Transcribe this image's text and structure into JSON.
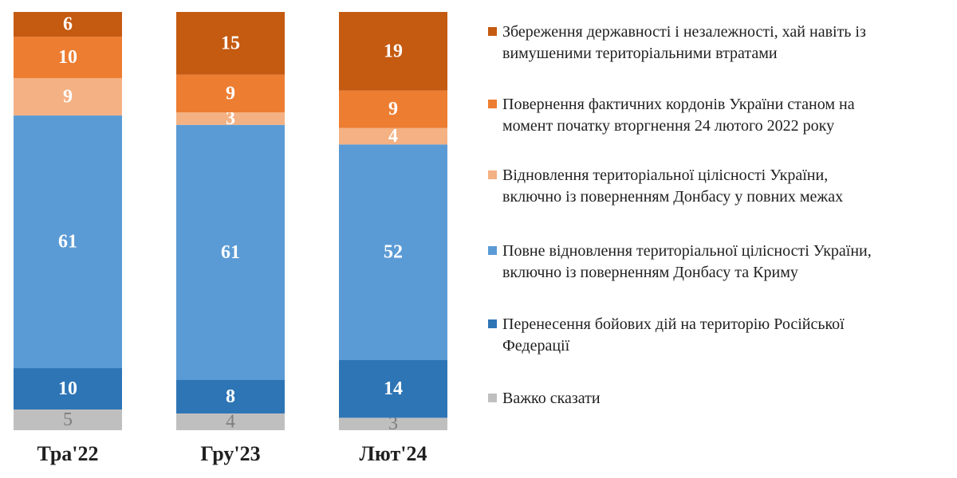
{
  "chart_data": {
    "type": "bar",
    "stacked": true,
    "normalized": true,
    "categories": [
      "Тра'22",
      "Гру'23",
      "Лют'24"
    ],
    "series": [
      {
        "name": "Важко сказати",
        "values": [
          5,
          4,
          3
        ],
        "color": "#bfbfbf",
        "label_color": "#7f7f7f"
      },
      {
        "name": "Перенесення бойових дій на територію Російської Федерації",
        "values": [
          10,
          8,
          14
        ],
        "color": "#2e75b6",
        "label_color": "#ffffff"
      },
      {
        "name": "Повне відновлення територіальної цілісності України, включно із поверненням Донбасу та Криму",
        "values": [
          61,
          61,
          52
        ],
        "color": "#5b9bd5",
        "label_color": "#ffffff"
      },
      {
        "name": "Відновлення територіальної цілісності України, включно із поверненням Донбасу у повних межах",
        "values": [
          9,
          3,
          4
        ],
        "color": "#f4b183",
        "label_color": "#ffffff"
      },
      {
        "name": "Повернення фактичних кордонів України станом на момент початку вторгнення 24 лютого 2022 року",
        "values": [
          10,
          9,
          9
        ],
        "color": "#ed7d31",
        "label_color": "#ffffff"
      },
      {
        "name": "Збереження державності і незалежності, хай навіть із вимушеними територіальними втратами",
        "values": [
          6,
          15,
          19
        ],
        "color": "#c55a11",
        "label_color": "#ffffff"
      }
    ],
    "legend_position": "right",
    "grid": false
  },
  "legend": {
    "items": [
      {
        "line1": "Збереження державності і незалежності, хай навіть із",
        "line2": "вимушеними територіальними втратами",
        "color": "#c55a11"
      },
      {
        "line1": "Повернення фактичних кордонів України станом на",
        "line2": "момент початку вторгнення 24 лютого 2022 року",
        "color": "#ed7d31"
      },
      {
        "line1": "Відновлення територіальної цілісності України,",
        "line2": "включно із поверненням Донбасу у повних межах",
        "color": "#f4b183"
      },
      {
        "line1": "Повне відновлення територіальної цілісності України,",
        "line2": "включно із поверненням Донбасу та Криму",
        "color": "#5b9bd5"
      },
      {
        "line1": "Перенесення бойових дій на територію Російської",
        "line2": "Федерації",
        "color": "#2e75b6"
      },
      {
        "line1": "Важко сказати",
        "line2": "",
        "color": "#bfbfbf"
      }
    ]
  }
}
